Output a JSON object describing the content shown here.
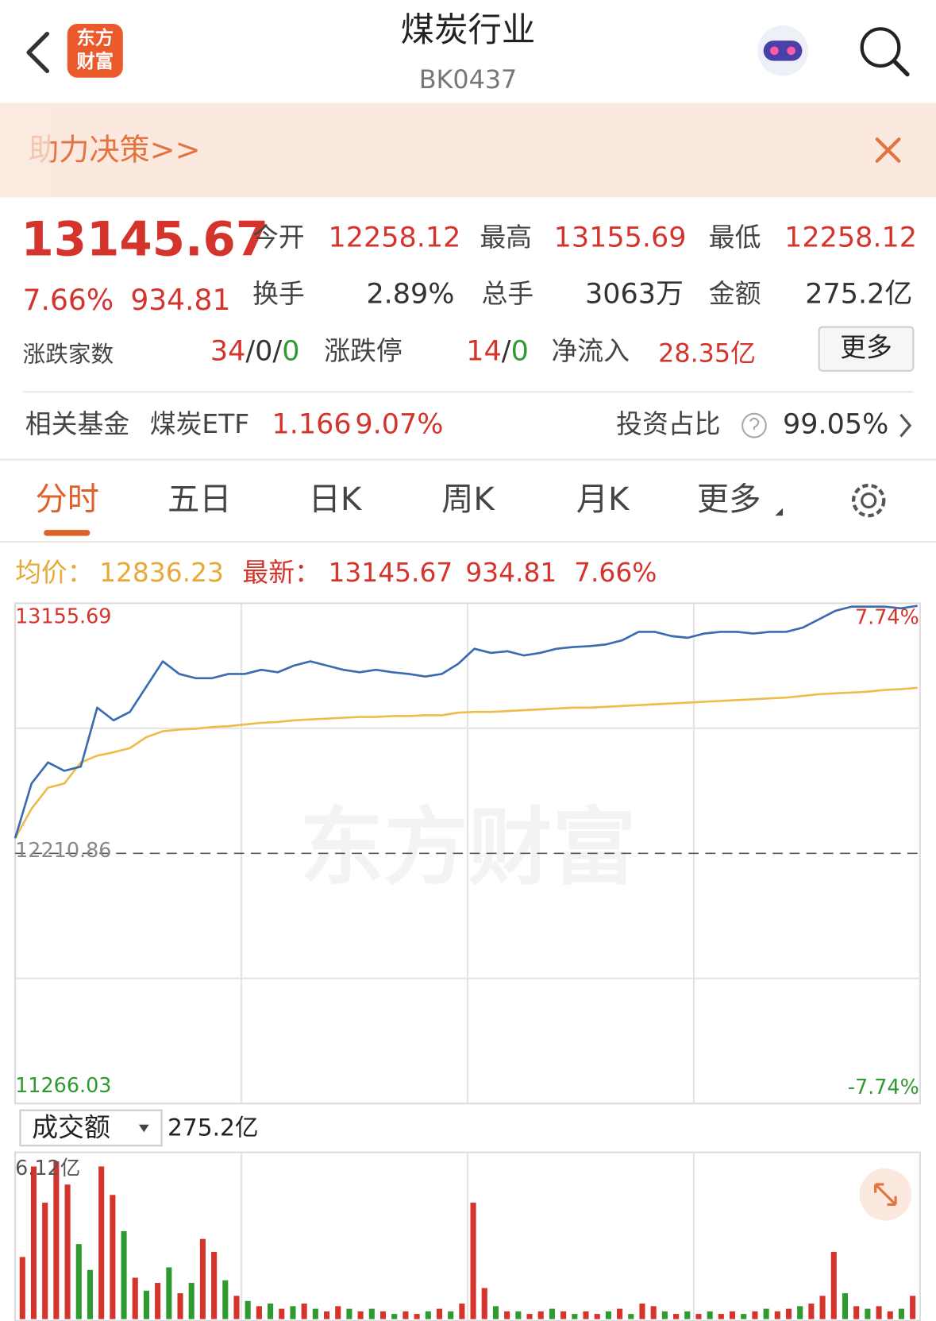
{
  "header": {
    "title": "煤炭行业",
    "code": "BK0437",
    "logo": [
      "东方",
      "财富"
    ]
  },
  "banner": {
    "text": "助力决策>>"
  },
  "quote": {
    "price": "13145.67",
    "change_pct": "7.66%",
    "change": "934.81",
    "open": {
      "label": "今开",
      "value": "12258.12"
    },
    "high": {
      "label": "最高",
      "value": "13155.69"
    },
    "low": {
      "label": "最低",
      "value": "12258.12"
    },
    "turnover": {
      "label": "换手",
      "value": "2.89%"
    },
    "volume": {
      "label": "总手",
      "value": "3063万"
    },
    "amount": {
      "label": "金额",
      "value": "275.2亿"
    },
    "breadth": {
      "label": "涨跌家数",
      "up": "34",
      "flat": "0",
      "down": "0",
      "separator": "/"
    },
    "limit": {
      "label": "涨跌停",
      "up": "14",
      "down": "0"
    },
    "net_inflow": {
      "label": "净流入",
      "value": "28.35亿"
    },
    "more": "更多"
  },
  "fund": {
    "label": "相关基金",
    "name": "煤炭ETF",
    "price": "1.166",
    "change_pct": "9.07%",
    "ratio_label": "投资占比",
    "ratio": "99.05%"
  },
  "tabs": [
    "分时",
    "五日",
    "日K",
    "周K",
    "月K",
    "更多"
  ],
  "legend": {
    "avg_label": "均价：",
    "avg": "12836.23",
    "latest_label": "最新：",
    "latest": "13145.67",
    "change": "934.81",
    "change_pct": "7.66%"
  },
  "volume_selector": {
    "label": "成交额",
    "value": "275.2亿"
  },
  "watermark": "东方财富",
  "chart_data": [
    {
      "type": "line",
      "ylim": [
        11266.03,
        13155.69
      ],
      "yticks": [
        11266.03,
        12210.86,
        13155.69
      ],
      "y2lim": [
        -7.74,
        7.74
      ],
      "y2ticks": [
        {
          "value": -7.74,
          "label": "-7.74%"
        },
        {
          "value": 7.74,
          "label": "7.74%"
        }
      ],
      "series": [
        {
          "color": "#3a6bb0",
          "values": [
            12268.1,
            12474.9,
            12554.4,
            12522.6,
            12538.5,
            12761.2,
            12713.5,
            12745.3,
            12840.8,
            12936.2,
            12888.5,
            12872.6,
            12872.6,
            12888.5,
            12888.5,
            12904.4,
            12894.8,
            12920.3,
            12936.2,
            12920.3,
            12904.4,
            12894.8,
            12904.4,
            12894.8,
            12888.5,
            12878.9,
            12888.5,
            12926.6,
            12983.9,
            12968.0,
            12974.4,
            12958.5,
            12968.0,
            12983.9,
            12990.3,
            12993.5,
            12999.8,
            13015.7,
            13047.5,
            13047.5,
            13031.6,
            13025.3,
            13041.2,
            13047.5,
            13047.5,
            13041.2,
            13047.5,
            13047.5,
            13063.4,
            13095.3,
            13127.1,
            13143.0,
            13143.0,
            13143.0,
            13136.6,
            13145.7
          ]
        },
        {
          "color": "#eebc4a",
          "values": [
            12268.1,
            12379.5,
            12459.0,
            12474.9,
            12554.4,
            12579.9,
            12592.6,
            12608.5,
            12649.9,
            12672.1,
            12678.5,
            12681.7,
            12688.0,
            12691.2,
            12697.6,
            12704.0,
            12707.1,
            12713.5,
            12716.7,
            12719.9,
            12723.0,
            12726.2,
            12726.2,
            12729.4,
            12729.4,
            12732.6,
            12732.6,
            12742.1,
            12745.3,
            12745.3,
            12748.5,
            12751.7,
            12754.9,
            12758.0,
            12761.2,
            12761.2,
            12764.4,
            12767.6,
            12770.8,
            12773.9,
            12777.1,
            12780.3,
            12783.5,
            12786.7,
            12789.9,
            12793.0,
            12796.2,
            12799.4,
            12805.8,
            12812.1,
            12815.3,
            12818.5,
            12821.7,
            12828.0,
            12831.2,
            12836.2
          ]
        }
      ]
    },
    {
      "type": "bar",
      "ylim": [
        0,
        6.12
      ],
      "yticks": [
        {
          "value": 6.12,
          "label": "6.12亿"
        }
      ],
      "values": [
        2.4,
        5.9,
        4.5,
        6.1,
        5.2,
        2.9,
        1.9,
        5.9,
        4.8,
        3.4,
        1.6,
        1.1,
        1.4,
        2.0,
        1.0,
        1.4,
        3.1,
        2.6,
        1.5,
        0.9,
        0.7,
        0.5,
        0.6,
        0.4,
        0.5,
        0.6,
        0.4,
        0.3,
        0.5,
        0.4,
        0.3,
        0.4,
        0.3,
        0.2,
        0.3,
        0.2,
        0.3,
        0.4,
        0.3,
        0.6,
        4.5,
        1.2,
        0.5,
        0.3,
        0.3,
        0.2,
        0.3,
        0.4,
        0.3,
        0.2,
        0.3,
        0.2,
        0.3,
        0.4,
        0.2,
        0.6,
        0.5,
        0.3,
        0.2,
        0.3,
        0.2,
        0.3,
        0.2,
        0.3,
        0.2,
        0.3,
        0.4,
        0.3,
        0.4,
        0.5,
        0.6,
        0.9,
        2.6,
        1.0,
        0.5,
        0.4,
        0.5,
        0.3,
        0.4,
        0.9
      ],
      "colors": [
        "#d4342c",
        "#d4342c",
        "#d4342c",
        "#d4342c",
        "#d4342c",
        "#2f9a2f",
        "#2f9a2f",
        "#d4342c",
        "#d4342c",
        "#2f9a2f",
        "#d4342c",
        "#2f9a2f",
        "#d4342c",
        "#2f9a2f",
        "#d4342c",
        "#2f9a2f",
        "#d4342c",
        "#d4342c",
        "#2f9a2f",
        "#d4342c",
        "#2f9a2f",
        "#d4342c",
        "#2f9a2f",
        "#d4342c",
        "#2f9a2f",
        "#d4342c",
        "#2f9a2f",
        "#d4342c",
        "#d4342c",
        "#2f9a2f",
        "#d4342c",
        "#2f9a2f",
        "#d4342c",
        "#2f9a2f",
        "#d4342c",
        "#d4342c",
        "#2f9a2f",
        "#d4342c",
        "#2f9a2f",
        "#d4342c",
        "#d4342c",
        "#d4342c",
        "#2f9a2f",
        "#d4342c",
        "#2f9a2f",
        "#d4342c",
        "#d4342c",
        "#2f9a2f",
        "#d4342c",
        "#2f9a2f",
        "#d4342c",
        "#d4342c",
        "#2f9a2f",
        "#d4342c",
        "#2f9a2f",
        "#d4342c",
        "#d4342c",
        "#2f9a2f",
        "#d4342c",
        "#2f9a2f",
        "#d4342c",
        "#2f9a2f",
        "#d4342c",
        "#d4342c",
        "#2f9a2f",
        "#d4342c",
        "#2f9a2f",
        "#d4342c",
        "#d4342c",
        "#2f9a2f",
        "#d4342c",
        "#d4342c",
        "#d4342c",
        "#2f9a2f",
        "#d4342c",
        "#2f9a2f",
        "#d4342c",
        "#d4342c",
        "#2f9a2f",
        "#d4342c"
      ]
    }
  ]
}
